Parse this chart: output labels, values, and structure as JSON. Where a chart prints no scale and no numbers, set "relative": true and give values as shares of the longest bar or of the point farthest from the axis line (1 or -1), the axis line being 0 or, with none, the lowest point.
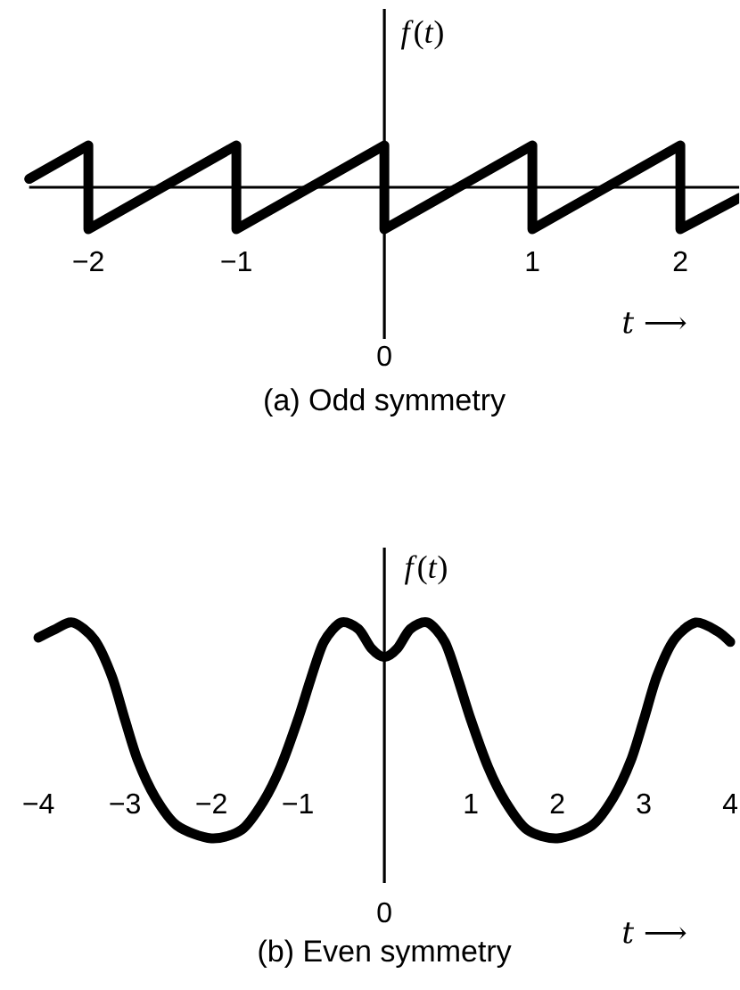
{
  "chart_data": [
    {
      "type": "line",
      "title": "(a) Odd symmetry",
      "xlabel": "*t* ⟶",
      "ylabel": "*f*(*t*)",
      "relative": true,
      "color": "#000000",
      "x": [
        -2.4,
        -2,
        -2,
        -1,
        -1,
        0,
        0,
        1,
        1,
        2,
        2,
        2.4
      ],
      "values": [
        0.2,
        1,
        -1,
        1,
        -1,
        1,
        -1,
        1,
        -1,
        1,
        -1,
        -0.25
      ],
      "xlim": [
        -2.4,
        2.4
      ],
      "xticks": [
        {
          "value": -2,
          "label": "−2"
        },
        {
          "value": -1,
          "label": "−1"
        },
        1,
        2
      ],
      "annotations": [
        "0"
      ]
    },
    {
      "type": "line",
      "title": "(b) Even symmetry",
      "xlabel": "*t* ⟶",
      "ylabel": "*f*(*t*)",
      "relative": true,
      "color": "#000000",
      "x": [
        -4,
        -3.8,
        -3.6,
        -3.35,
        -3.15,
        -3,
        -2.85,
        -2.65,
        -2.4,
        -2,
        -1.65,
        -1.4,
        -1.2,
        -1,
        -0.85,
        -0.7,
        -0.5,
        -0.3,
        -0.15,
        0,
        0.15,
        0.3,
        0.5,
        0.7,
        0.85,
        1,
        1.2,
        1.4,
        1.65,
        2,
        2.4,
        2.65,
        2.85,
        3,
        3.15,
        3.35,
        3.6,
        3.85,
        4
      ],
      "values": [
        0.93,
        0.97,
        1,
        0.92,
        0.75,
        0.55,
        0.36,
        0.19,
        0.06,
        0,
        0.04,
        0.17,
        0.33,
        0.55,
        0.74,
        0.91,
        1,
        0.97,
        0.88,
        0.84,
        0.88,
        0.97,
        1,
        0.91,
        0.74,
        0.55,
        0.33,
        0.17,
        0.04,
        0,
        0.06,
        0.19,
        0.36,
        0.55,
        0.75,
        0.92,
        1,
        0.96,
        0.91
      ],
      "xlim": [
        -4,
        4
      ],
      "xticks": [
        {
          "value": -4,
          "label": "−4"
        },
        {
          "value": -3,
          "label": "−3"
        },
        {
          "value": -2,
          "label": "−2"
        },
        {
          "value": -1,
          "label": "−1"
        },
        1,
        2,
        3,
        4
      ],
      "annotations": [
        "0"
      ]
    }
  ]
}
